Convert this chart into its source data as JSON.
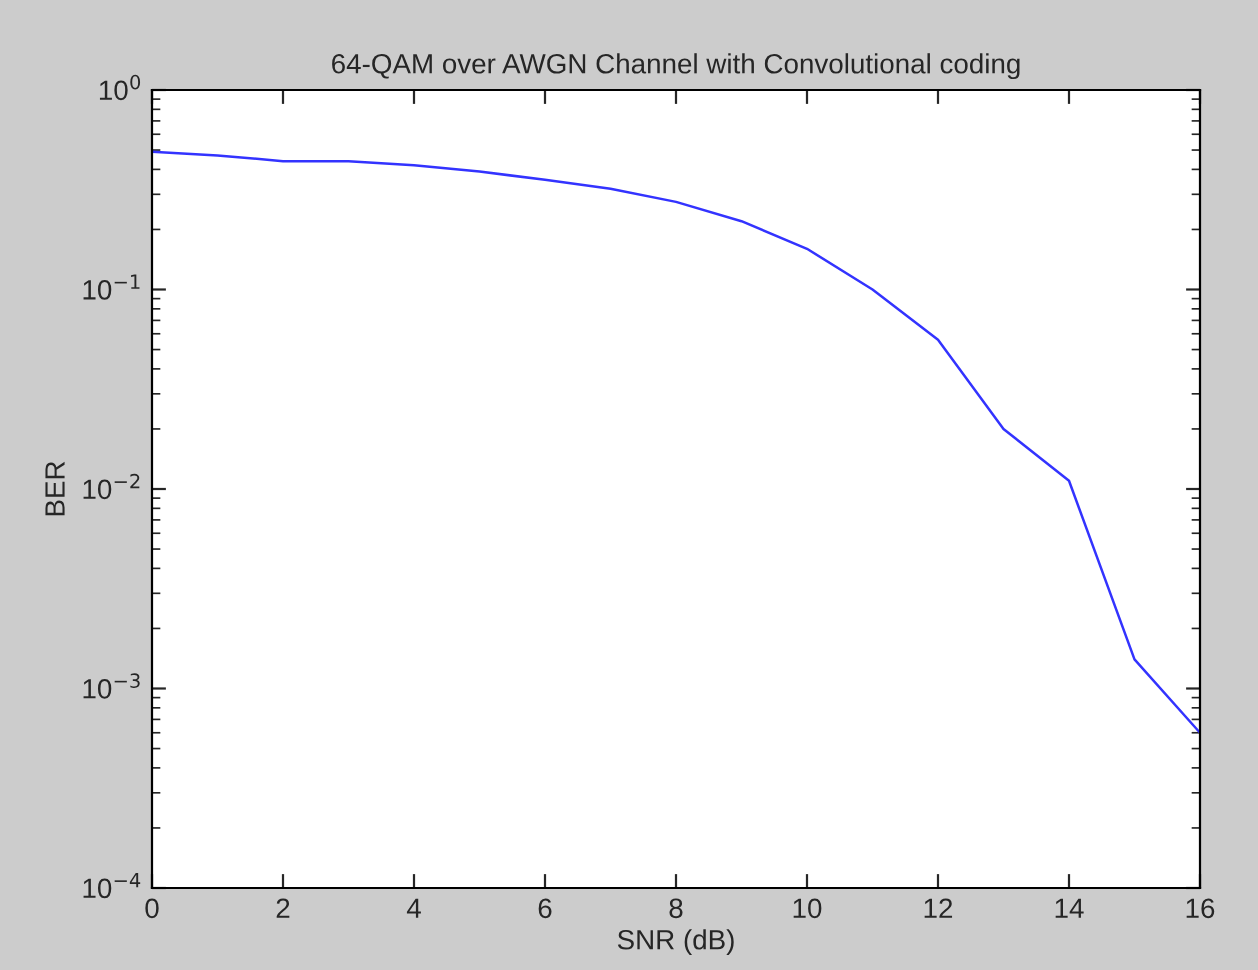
{
  "chart_data": {
    "type": "line",
    "title": "64-QAM over AWGN Channel with Convolutional coding",
    "xlabel": "SNR (dB)",
    "ylabel": "BER",
    "x": [
      0,
      1,
      2,
      3,
      4,
      5,
      6,
      7,
      8,
      9,
      10,
      11,
      12,
      13,
      14,
      15,
      16
    ],
    "series": [
      {
        "color": "#3333ff",
        "values": [
          0.49,
          0.47,
          0.44,
          0.44,
          0.42,
          0.39,
          0.355,
          0.32,
          0.275,
          0.22,
          0.16,
          0.1,
          0.056,
          0.02,
          0.011,
          0.0014,
          0.0006
        ]
      }
    ],
    "log": "y",
    "xlim": [
      0,
      16
    ],
    "ylim": [
      0.0001,
      1
    ],
    "xticks": [
      0,
      2,
      4,
      6,
      8,
      10,
      12,
      14,
      16
    ],
    "yticks": [
      {
        "value": 0.0001,
        "label": "10$^{−4}$"
      },
      {
        "value": 0.001,
        "label": "10$^{−3}$"
      },
      {
        "value": 0.01,
        "label": "10$^{−2}$"
      },
      {
        "value": 0.1,
        "label": "10$^{−1}$"
      },
      {
        "value": 1,
        "label": "10$^{0}$"
      }
    ],
    "grid": false,
    "marker": "none",
    "line_style": "solid"
  }
}
